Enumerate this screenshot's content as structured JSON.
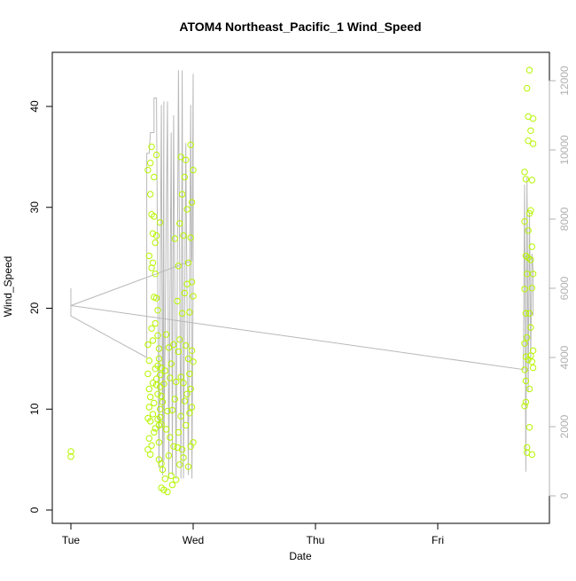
{
  "chart_data": {
    "type": "scatter",
    "title": "ATOM4 Northeast_Pacific_1 Wind_Speed",
    "xlabel": "Date",
    "ylabel": "Wind_Speed",
    "x_tick_labels": [
      "Tue",
      "Wed",
      "Thu",
      "Fri"
    ],
    "xlim": [
      0,
      3.9
    ],
    "ylim": [
      0,
      43.5
    ],
    "y_ticks": [
      0,
      10,
      20,
      30,
      40
    ],
    "y2_ticks": [
      0,
      2000,
      4000,
      6000,
      8000,
      10000,
      12000
    ],
    "y2lim": [
      0,
      12600
    ],
    "grid": false,
    "colors": {
      "points": "#b7f500",
      "line": "#b8b8b8",
      "axis": "#000000",
      "axis2": "#b0b0b0"
    },
    "series": [
      {
        "type": "scatter",
        "x": [
          0.0,
          0.0,
          0.63,
          0.63,
          0.63,
          0.63,
          0.63,
          0.64,
          0.64,
          0.64,
          0.64,
          0.64,
          0.65,
          0.65,
          0.65,
          0.65,
          0.65,
          0.66,
          0.66,
          0.66,
          0.66,
          0.66,
          0.67,
          0.67,
          0.67,
          0.67,
          0.67,
          0.68,
          0.68,
          0.68,
          0.68,
          0.68,
          0.69,
          0.69,
          0.69,
          0.69,
          0.69,
          0.7,
          0.7,
          0.7,
          0.7,
          0.7,
          0.71,
          0.71,
          0.71,
          0.71,
          0.71,
          0.72,
          0.72,
          0.72,
          0.72,
          0.72,
          0.73,
          0.73,
          0.73,
          0.73,
          0.73,
          0.74,
          0.74,
          0.74,
          0.74,
          0.74,
          0.75,
          0.75,
          0.76,
          0.76,
          0.77,
          0.77,
          0.78,
          0.78,
          0.79,
          0.79,
          0.8,
          0.8,
          0.81,
          0.81,
          0.82,
          0.82,
          0.83,
          0.83,
          0.84,
          0.84,
          0.85,
          0.85,
          0.86,
          0.86,
          0.87,
          0.87,
          0.88,
          0.88,
          0.88,
          0.89,
          0.89,
          0.89,
          0.9,
          0.9,
          0.9,
          0.91,
          0.91,
          0.91,
          0.92,
          0.92,
          0.92,
          0.93,
          0.93,
          0.93,
          0.94,
          0.94,
          0.94,
          0.95,
          0.95,
          0.95,
          0.96,
          0.96,
          0.96,
          0.97,
          0.97,
          0.97,
          0.98,
          0.98,
          0.98,
          0.98,
          0.99,
          0.99,
          0.99,
          0.99,
          1.0,
          1.0,
          1.0,
          1.0,
          3.71,
          3.71,
          3.71,
          3.71,
          3.71,
          3.71,
          3.72,
          3.72,
          3.72,
          3.72,
          3.72,
          3.72,
          3.73,
          3.73,
          3.73,
          3.73,
          3.73,
          3.74,
          3.74,
          3.74,
          3.74,
          3.74,
          3.75,
          3.75,
          3.75,
          3.75,
          3.75,
          3.76,
          3.76,
          3.76,
          3.76,
          3.76,
          3.77,
          3.77,
          3.77,
          3.77,
          3.77,
          3.78,
          3.78,
          3.78,
          3.78,
          3.78
        ],
        "y": [
          5.8,
          5.3,
          16.4,
          9.1,
          6.0,
          33.7,
          13.5,
          10.2,
          12.0,
          25.2,
          7.1,
          14.8,
          5.5,
          31.3,
          8.8,
          34.4,
          11.2,
          36.0,
          24.0,
          6.4,
          18.0,
          29.3,
          24.5,
          9.5,
          12.6,
          16.8,
          27.4,
          33.0,
          10.6,
          7.7,
          29.1,
          21.1,
          14.0,
          18.5,
          26.5,
          8.1,
          23.4,
          13.0,
          12.4,
          35.2,
          27.2,
          21.0,
          17.3,
          9.0,
          14.3,
          11.5,
          19.8,
          6.7,
          5.0,
          8.4,
          15.0,
          16.0,
          13.4,
          10.0,
          12.2,
          28.5,
          9.2,
          2.2,
          8.5,
          14.1,
          11.3,
          4.6,
          4.0,
          10.7,
          2.0,
          12.5,
          13.8,
          3.1,
          8.0,
          17.4,
          1.8,
          9.8,
          5.4,
          16.1,
          7.2,
          13.1,
          3.4,
          14.5,
          2.5,
          9.9,
          6.3,
          16.4,
          11.0,
          26.9,
          3.0,
          12.7,
          6.2,
          20.7,
          15.7,
          24.2,
          7.7,
          4.5,
          16.9,
          28.4,
          9.3,
          35.0,
          13.2,
          6.0,
          19.5,
          31.3,
          27.2,
          12.6,
          5.2,
          21.5,
          10.8,
          33.0,
          8.4,
          16.3,
          34.7,
          22.4,
          11.5,
          29.8,
          4.3,
          15.0,
          24.5,
          19.6,
          9.6,
          13.5,
          36.2,
          27.0,
          12.0,
          6.3,
          22.6,
          10.2,
          15.8,
          30.5,
          6.7,
          14.7,
          21.2,
          33.7,
          10.3,
          13.9,
          16.5,
          21.9,
          28.6,
          33.5,
          15.2,
          10.7,
          25.2,
          19.5,
          12.8,
          32.8,
          17.1,
          41.8,
          6.2,
          23.4,
          5.7,
          14.9,
          25.0,
          36.6,
          39.0,
          27.7,
          29.4,
          8.2,
          43.6,
          12.0,
          19.5,
          24.8,
          15.3,
          37.6,
          18.1,
          29.7,
          5.5,
          22.0,
          14.7,
          32.7,
          26.1,
          38.8,
          36.3,
          15.8,
          23.4,
          14.1
        ],
        "name": ""
      },
      {
        "type": "line",
        "axis": "right",
        "x": [
          0.0,
          0.0,
          0.62,
          0.62,
          0.64,
          0.65,
          0.68,
          0.68,
          0.7,
          0.72,
          0.74,
          0.75,
          0.76,
          0.76,
          0.79,
          0.8,
          0.82,
          0.83,
          0.84,
          0.86,
          0.88,
          0.9,
          0.91,
          0.92,
          0.94,
          0.96,
          0.98,
          0.99,
          1.0,
          1.0,
          0.99,
          0.0,
          3.7,
          3.71,
          3.72,
          3.73,
          3.74,
          3.75,
          3.76,
          3.77,
          3.78,
          3.78
        ],
        "y": [
          6000,
          5200,
          4000,
          9900,
          9900,
          10500,
          10500,
          11500,
          11500,
          800,
          11300,
          600,
          11400,
          1000,
          11400,
          500,
          10500,
          600,
          11000,
          500,
          12300,
          500,
          12300,
          500,
          10200,
          600,
          11300,
          500,
          6400,
          12200,
          6800,
          5500,
          3650,
          9000,
          700,
          9200,
          3000,
          8200,
          4000,
          7000,
          6500,
          5200
        ],
        "name": ""
      }
    ]
  }
}
